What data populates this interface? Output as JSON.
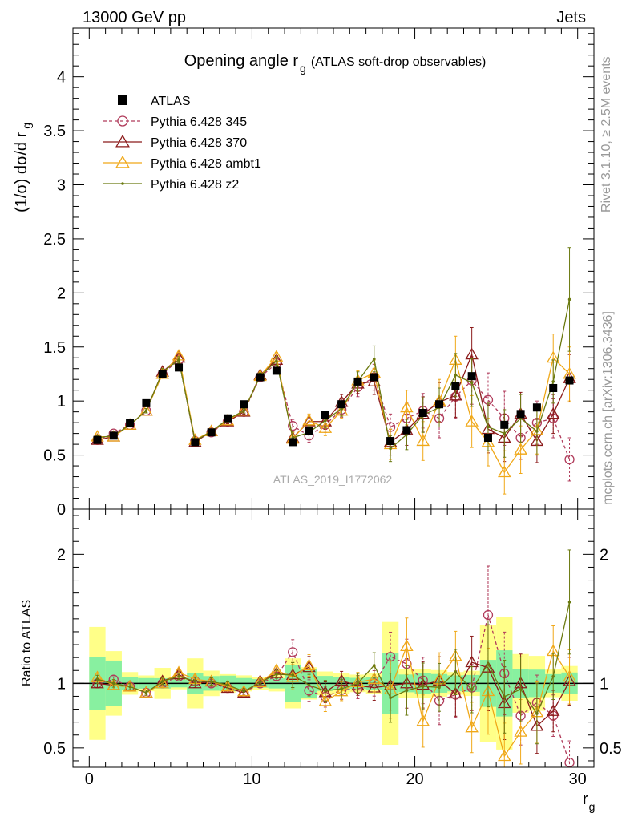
{
  "header": {
    "left": "13000 GeV pp",
    "right": "Jets"
  },
  "side_labels": {
    "rivet": "Rivet 3.1.10, ≥ 2.5M events",
    "mcplots": "mcplots.cern.ch [arXiv:1306.3436]"
  },
  "chart_data": {
    "type": "line",
    "title_main": "Opening angle r",
    "title_sub": "g",
    "title_paren": "(ATLAS soft-drop observables)",
    "analysis_label": "ATLAS_2019_I1772062",
    "ylabel_top": "(1/σ) dσ/d r",
    "ylabel_top_sub": "g",
    "ylabel_bottom": "Ratio to ATLAS",
    "xlabel": "r",
    "xlabel_sub": "g",
    "xlim": [
      -1,
      31
    ],
    "ylim_top": [
      0,
      4.45
    ],
    "ylim_bottom": [
      0.35,
      2.35
    ],
    "x_ticks": [
      "0",
      "10",
      "20",
      "30"
    ],
    "y_ticks_top": [
      "0",
      "0.5",
      "1",
      "1.5",
      "2",
      "2.5",
      "3",
      "3.5",
      "4"
    ],
    "y_ticks_bottom": [
      "0.5",
      "1",
      "2"
    ],
    "x": [
      0.5,
      1.5,
      2.5,
      3.5,
      4.5,
      5.5,
      6.5,
      7.5,
      8.5,
      9.5,
      10.5,
      11.5,
      12.5,
      13.5,
      14.5,
      15.5,
      16.5,
      17.5,
      18.5,
      19.5,
      20.5,
      21.5,
      22.5,
      23.5,
      24.5,
      25.5,
      26.5,
      27.5,
      28.5,
      29.5
    ],
    "data": {
      "name": "ATLAS",
      "values": [
        0.64,
        0.68,
        0.8,
        0.98,
        1.25,
        1.31,
        0.62,
        0.71,
        0.84,
        0.97,
        1.22,
        1.28,
        0.62,
        0.72,
        0.87,
        0.97,
        1.18,
        1.22,
        0.63,
        0.73,
        0.89,
        0.97,
        1.14,
        1.23,
        0.66,
        0.78,
        0.88,
        0.94,
        1.12,
        1.19
      ],
      "band_inner": [
        0.13,
        0.12,
        0.04,
        0.04,
        0.05,
        0.04,
        0.05,
        0.04,
        0.05,
        0.04,
        0.04,
        0.05,
        0.09,
        0.08,
        0.05,
        0.05,
        0.05,
        0.06,
        0.15,
        0.05,
        0.07,
        0.07,
        0.07,
        0.08,
        0.12,
        0.2,
        0.1,
        0.1,
        0.08,
        0.1
      ],
      "band_outer": [
        0.28,
        0.17,
        0.07,
        0.06,
        0.15,
        0.06,
        0.12,
        0.07,
        0.06,
        0.06,
        0.06,
        0.08,
        0.12,
        0.09,
        0.08,
        0.08,
        0.08,
        0.1,
        0.3,
        0.08,
        0.1,
        0.1,
        0.1,
        0.12,
        0.3,
        0.4,
        0.2,
        0.2,
        0.12,
        0.16
      ]
    },
    "series": [
      {
        "name": "Pythia 6.428 345",
        "color": "#b03a5a",
        "marker": "circle",
        "dashed": true,
        "values": [
          0.64,
          0.7,
          0.78,
          0.91,
          1.25,
          1.38,
          0.63,
          0.71,
          0.81,
          0.9,
          1.22,
          1.35,
          0.77,
          0.68,
          0.78,
          0.92,
          1.13,
          1.22,
          0.76,
          0.84,
          0.91,
          0.84,
          1.04,
          1.19,
          1.01,
          0.84,
          0.66,
          0.8,
          0.84,
          0.46
        ],
        "errors": [
          0.02,
          0.02,
          0.02,
          0.02,
          0.03,
          0.03,
          0.02,
          0.02,
          0.02,
          0.02,
          0.03,
          0.04,
          0.06,
          0.06,
          0.07,
          0.07,
          0.09,
          0.12,
          0.12,
          0.14,
          0.16,
          0.18,
          0.2,
          0.22,
          0.25,
          0.25,
          0.2,
          0.2,
          0.18,
          0.2
        ]
      },
      {
        "name": "Pythia 6.428 370",
        "color": "#8b1a1a",
        "marker": "triangle",
        "dashed": false,
        "values": [
          0.64,
          0.67,
          0.78,
          0.91,
          1.27,
          1.4,
          0.62,
          0.72,
          0.81,
          0.9,
          1.24,
          1.38,
          0.66,
          0.81,
          0.81,
          0.99,
          1.16,
          1.18,
          0.62,
          0.73,
          0.88,
          0.99,
          1.05,
          1.43,
          0.74,
          0.66,
          0.88,
          0.63,
          0.88,
          1.21
        ],
        "errors": [
          0.02,
          0.02,
          0.02,
          0.02,
          0.03,
          0.03,
          0.02,
          0.02,
          0.02,
          0.02,
          0.03,
          0.04,
          0.06,
          0.06,
          0.07,
          0.07,
          0.09,
          0.12,
          0.12,
          0.14,
          0.16,
          0.18,
          0.2,
          0.25,
          0.22,
          0.22,
          0.2,
          0.2,
          0.18,
          0.22
        ]
      },
      {
        "name": "Pythia 6.428 ambt1",
        "color": "#f0a818",
        "marker": "triangle",
        "dashed": false,
        "values": [
          0.67,
          0.67,
          0.78,
          0.91,
          1.25,
          1.42,
          0.64,
          0.72,
          0.82,
          0.91,
          1.23,
          1.41,
          0.65,
          0.82,
          0.75,
          0.91,
          1.19,
          1.26,
          0.6,
          0.94,
          0.63,
          1.0,
          1.38,
          0.81,
          0.62,
          0.34,
          0.55,
          0.73,
          1.4,
          1.25
        ],
        "errors": [
          0.02,
          0.02,
          0.02,
          0.02,
          0.03,
          0.03,
          0.02,
          0.02,
          0.02,
          0.02,
          0.03,
          0.04,
          0.06,
          0.06,
          0.07,
          0.07,
          0.09,
          0.12,
          0.14,
          0.16,
          0.18,
          0.2,
          0.22,
          0.24,
          0.22,
          0.2,
          0.22,
          0.22,
          0.22,
          0.25
        ]
      },
      {
        "name": "Pythia 6.428 z2",
        "color": "#6b7a10",
        "marker": "dot",
        "dashed": false,
        "values": [
          0.66,
          0.68,
          0.78,
          0.91,
          1.27,
          1.38,
          0.63,
          0.72,
          0.83,
          0.91,
          1.23,
          1.37,
          0.66,
          0.71,
          0.82,
          0.93,
          1.18,
          1.39,
          0.56,
          0.69,
          0.87,
          0.94,
          1.24,
          1.17,
          0.76,
          0.7,
          0.84,
          0.72,
          1.18,
          1.94
        ],
        "errors": [
          0.02,
          0.02,
          0.02,
          0.02,
          0.03,
          0.03,
          0.02,
          0.02,
          0.02,
          0.02,
          0.03,
          0.04,
          0.06,
          0.06,
          0.07,
          0.07,
          0.09,
          0.12,
          0.12,
          0.14,
          0.16,
          0.18,
          0.2,
          0.22,
          0.22,
          0.22,
          0.22,
          0.22,
          0.2,
          0.48
        ]
      }
    ],
    "band_colors": {
      "inner": "#88f0a0",
      "outer": "#ffff88"
    }
  }
}
